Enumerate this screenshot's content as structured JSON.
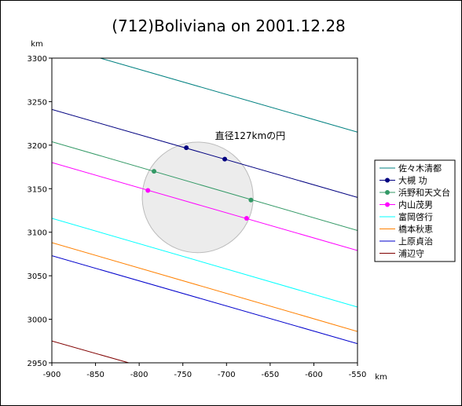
{
  "chart_data": {
    "type": "line",
    "title": "(712)Boliviana on 2001.12.28",
    "xunit": "km",
    "yunit": "km",
    "xlim": [
      -900,
      -550
    ],
    "ylim": [
      2950,
      3300
    ],
    "xticks": [
      -900,
      -850,
      -800,
      -750,
      -700,
      -650,
      -600,
      -550
    ],
    "yticks": [
      2950,
      3000,
      3050,
      3100,
      3150,
      3200,
      3250,
      3300
    ],
    "grid": false,
    "legend_position": "right",
    "circle": {
      "cx": -733,
      "cy": 3140,
      "diameter": 127,
      "label": "直径127kmの円"
    },
    "series": [
      {
        "name": "佐々木清都",
        "color": "#008080",
        "marker": false,
        "line": [
          [
            -855,
            3303
          ],
          [
            -550,
            3215
          ]
        ],
        "points": []
      },
      {
        "name": "大槻 功",
        "color": "#000080",
        "marker": true,
        "line": [
          [
            -900,
            3241
          ],
          [
            -550,
            3140
          ]
        ],
        "points": [
          [
            -746,
            3197
          ],
          [
            -702,
            3184
          ]
        ]
      },
      {
        "name": "浜野和天文台",
        "color": "#339966",
        "marker": true,
        "line": [
          [
            -900,
            3204
          ],
          [
            -550,
            3102
          ]
        ],
        "points": [
          [
            -783,
            3170
          ],
          [
            -672,
            3137
          ]
        ]
      },
      {
        "name": "内山茂男",
        "color": "#ff00ff",
        "marker": true,
        "line": [
          [
            -900,
            3180
          ],
          [
            -550,
            3079
          ]
        ],
        "points": [
          [
            -790,
            3148
          ],
          [
            -677,
            3116
          ]
        ]
      },
      {
        "name": "富岡啓行",
        "color": "#00ffff",
        "marker": false,
        "line": [
          [
            -900,
            3116
          ],
          [
            -550,
            3014
          ]
        ],
        "points": []
      },
      {
        "name": "橋本秋恵",
        "color": "#ff8000",
        "marker": false,
        "line": [
          [
            -900,
            3088
          ],
          [
            -550,
            2986
          ]
        ],
        "points": []
      },
      {
        "name": "上原貞治",
        "color": "#0000cc",
        "marker": false,
        "line": [
          [
            -900,
            3073
          ],
          [
            -550,
            2972
          ]
        ],
        "points": []
      },
      {
        "name": "浦辺守",
        "color": "#800000",
        "marker": false,
        "line": [
          [
            -900,
            2975
          ],
          [
            -812,
            2950
          ]
        ],
        "points": []
      }
    ]
  }
}
